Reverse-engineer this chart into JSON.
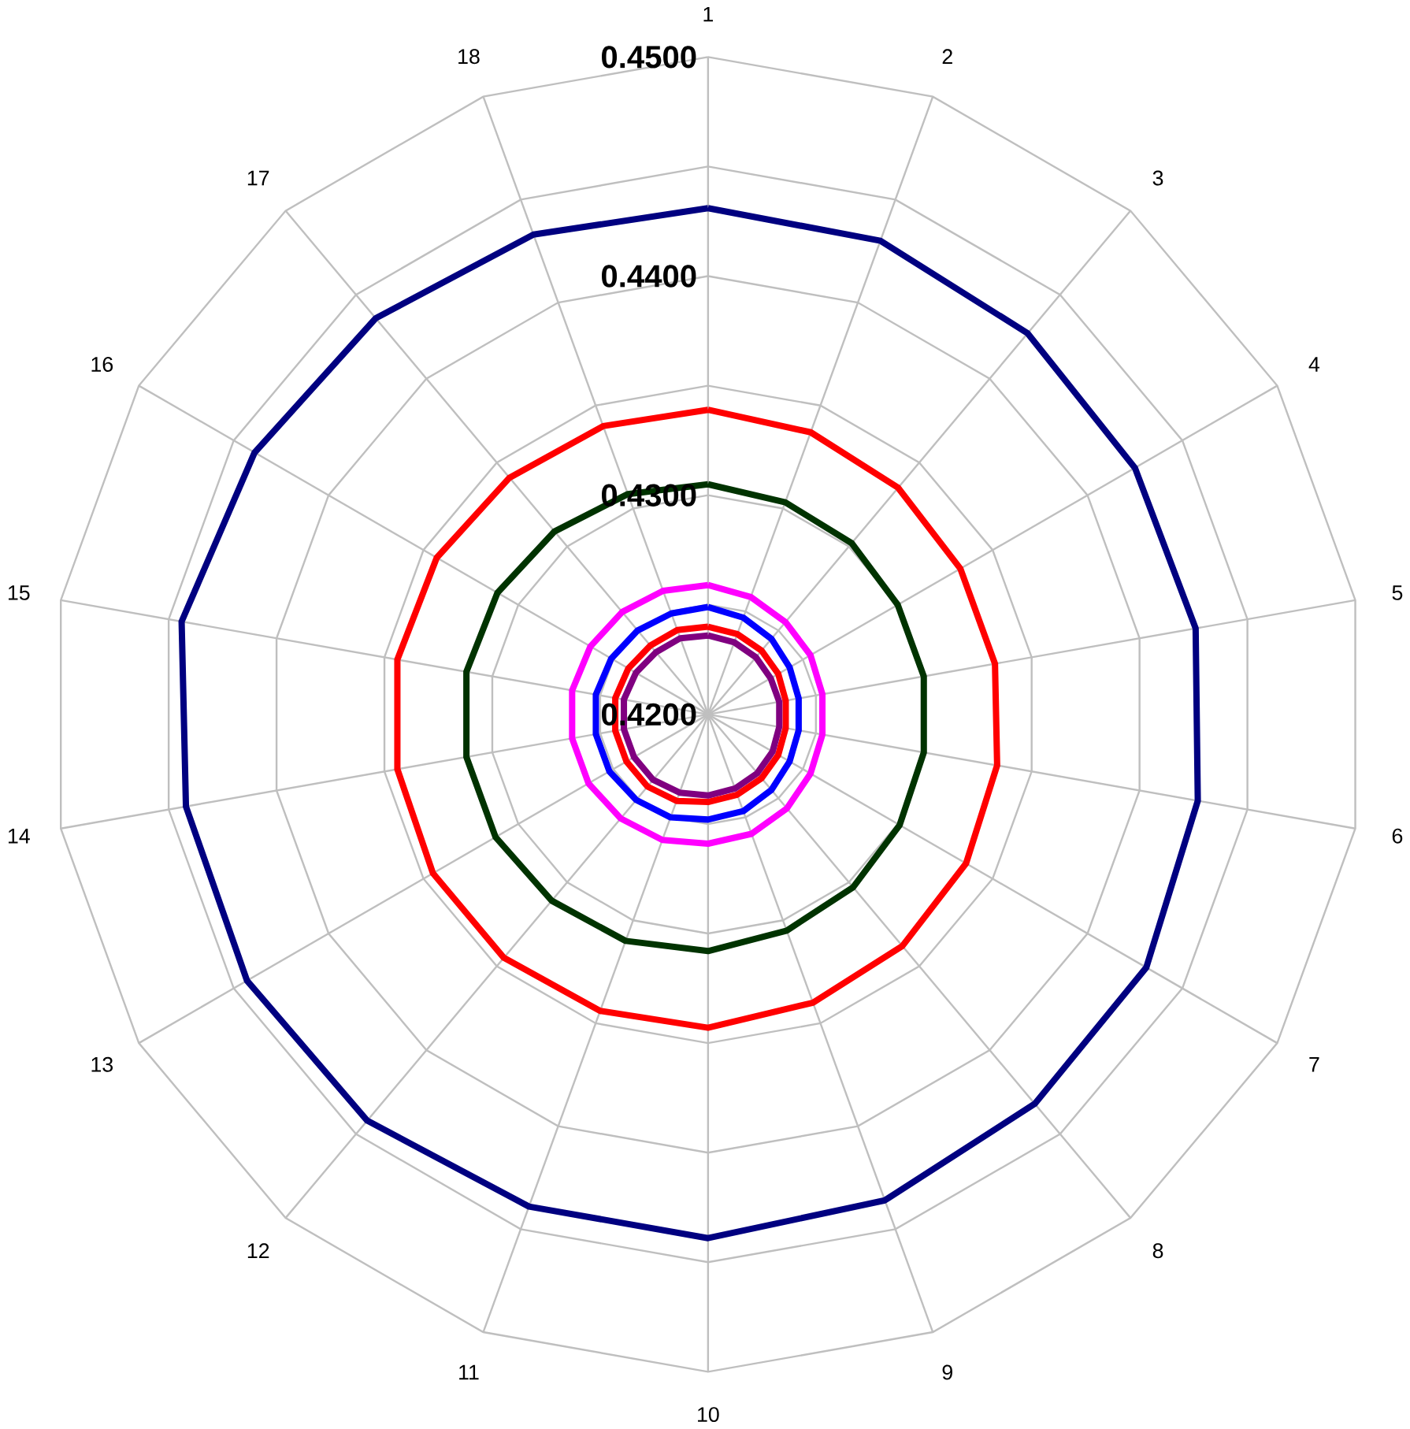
{
  "chart_data": {
    "type": "radar",
    "categories": [
      "1",
      "2",
      "3",
      "4",
      "5",
      "6",
      "7",
      "8",
      "9",
      "10",
      "11",
      "12",
      "13",
      "14",
      "15",
      "16",
      "17",
      "18"
    ],
    "ylim": [
      0.42,
      0.45
    ],
    "yticks": [
      {
        "value": 0.42,
        "label": "0.4200"
      },
      {
        "value": 0.43,
        "label": "0.4300"
      },
      {
        "value": 0.44,
        "label": "0.4400"
      },
      {
        "value": 0.45,
        "label": "0.4500"
      }
    ],
    "grid": true,
    "series": [
      {
        "color": "#000080",
        "values": [
          0.4431,
          0.443,
          0.4427,
          0.4425,
          0.4426,
          0.4427,
          0.4431,
          0.4432,
          0.4436,
          0.4439,
          0.4439,
          0.4442,
          0.4443,
          0.4442,
          0.4444,
          0.4439,
          0.4436,
          0.4433
        ]
      },
      {
        "color": "#ff0000",
        "values": [
          0.4339,
          0.4337,
          0.4335,
          0.4333,
          0.4333,
          0.4334,
          0.4336,
          0.4338,
          0.434,
          0.4343,
          0.4344,
          0.4345,
          0.4345,
          0.4344,
          0.4344,
          0.4343,
          0.4341,
          0.434
        ]
      },
      {
        "color": "#003300",
        "values": [
          0.4305,
          0.4303,
          0.4302,
          0.43,
          0.43,
          0.43,
          0.4301,
          0.4303,
          0.4305,
          0.4308,
          0.431,
          0.4311,
          0.4312,
          0.4312,
          0.4312,
          0.4311,
          0.4309,
          0.4307
        ]
      },
      {
        "color": "#ff00ff",
        "values": [
          0.4259,
          0.4257,
          0.4255,
          0.4254,
          0.4253,
          0.4253,
          0.4254,
          0.4256,
          0.4258,
          0.4259,
          0.4261,
          0.4262,
          0.4263,
          0.4263,
          0.4263,
          0.4262,
          0.4261,
          0.426
        ]
      },
      {
        "color": "#0000ff",
        "values": [
          0.4249,
          0.4247,
          0.4245,
          0.4243,
          0.4242,
          0.4242,
          0.4243,
          0.4245,
          0.4247,
          0.4248,
          0.425,
          0.4251,
          0.4252,
          0.4252,
          0.4252,
          0.4251,
          0.425,
          0.4249
        ]
      },
      {
        "color": "#ff0000",
        "values": [
          0.424,
          0.4239,
          0.4238,
          0.4237,
          0.4236,
          0.4236,
          0.4237,
          0.4238,
          0.4239,
          0.424,
          0.4242,
          0.4243,
          0.4243,
          0.4243,
          0.4243,
          0.4242,
          0.4241,
          0.4241
        ]
      },
      {
        "color": "#800080",
        "values": [
          0.4236,
          0.4235,
          0.4234,
          0.4233,
          0.4233,
          0.4233,
          0.4234,
          0.4235,
          0.4236,
          0.4237,
          0.4238,
          0.4239,
          0.4239,
          0.4239,
          0.4239,
          0.4238,
          0.4237,
          0.4237
        ]
      }
    ]
  }
}
